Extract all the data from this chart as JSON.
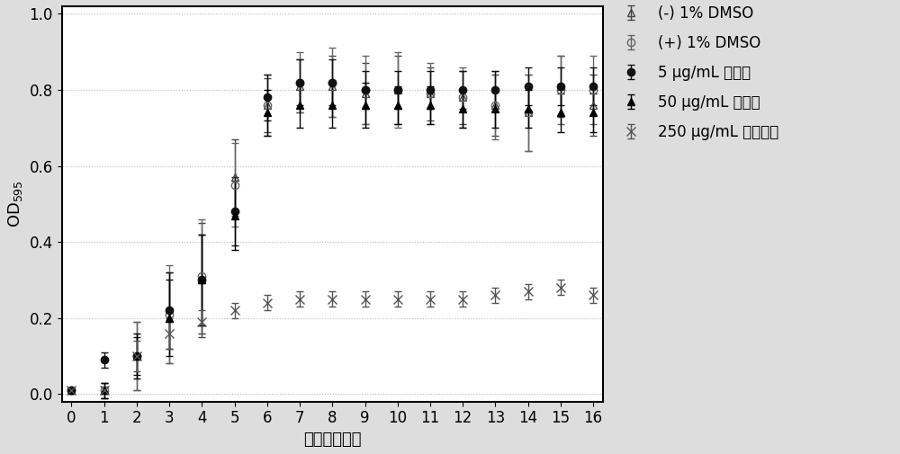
{
  "x": [
    0,
    1,
    2,
    3,
    4,
    5,
    6,
    7,
    8,
    9,
    10,
    11,
    12,
    13,
    14,
    15,
    16
  ],
  "series": {
    "neg_dmso": {
      "label": "(-) 1% DMSO",
      "y": [
        0.01,
        0.01,
        0.1,
        0.2,
        0.3,
        0.57,
        0.76,
        0.81,
        0.81,
        0.79,
        0.8,
        0.79,
        0.78,
        0.76,
        0.74,
        0.81,
        0.76
      ],
      "yerr": [
        0.005,
        0.02,
        0.09,
        0.12,
        0.15,
        0.1,
        0.07,
        0.07,
        0.08,
        0.08,
        0.09,
        0.07,
        0.07,
        0.08,
        0.1,
        0.08,
        0.08
      ],
      "marker": "^",
      "markersize": 6,
      "fillstyle": "none",
      "color": "#444444",
      "linestyle": "-"
    },
    "pos_dmso": {
      "label": "(+) 1% DMSO",
      "y": [
        0.01,
        0.01,
        0.1,
        0.21,
        0.31,
        0.55,
        0.76,
        0.82,
        0.82,
        0.8,
        0.8,
        0.79,
        0.78,
        0.76,
        0.74,
        0.8,
        0.8
      ],
      "yerr": [
        0.005,
        0.02,
        0.09,
        0.13,
        0.15,
        0.11,
        0.08,
        0.08,
        0.09,
        0.09,
        0.1,
        0.08,
        0.08,
        0.09,
        0.1,
        0.09,
        0.09
      ],
      "marker": "o",
      "markersize": 6,
      "fillstyle": "none",
      "color": "#666666",
      "linestyle": "-"
    },
    "inhib_5": {
      "label": "5 μg/mL 抑制剂",
      "y": [
        0.01,
        0.09,
        0.1,
        0.22,
        0.3,
        0.48,
        0.78,
        0.82,
        0.82,
        0.8,
        0.8,
        0.8,
        0.8,
        0.8,
        0.81,
        0.81,
        0.81
      ],
      "yerr": [
        0.005,
        0.02,
        0.05,
        0.1,
        0.12,
        0.09,
        0.06,
        0.06,
        0.06,
        0.05,
        0.05,
        0.05,
        0.05,
        0.05,
        0.05,
        0.05,
        0.05
      ],
      "marker": "o",
      "markersize": 6,
      "fillstyle": "full",
      "color": "#111111",
      "linestyle": "-"
    },
    "inhib_50": {
      "label": "50 μg/mL 抑制剂",
      "y": [
        0.01,
        0.01,
        0.1,
        0.2,
        0.3,
        0.47,
        0.74,
        0.76,
        0.76,
        0.76,
        0.76,
        0.76,
        0.75,
        0.75,
        0.75,
        0.74,
        0.74
      ],
      "yerr": [
        0.005,
        0.02,
        0.06,
        0.1,
        0.12,
        0.09,
        0.06,
        0.06,
        0.06,
        0.06,
        0.05,
        0.05,
        0.05,
        0.05,
        0.05,
        0.05,
        0.05
      ],
      "marker": "^",
      "markersize": 6,
      "fillstyle": "full",
      "color": "#000000",
      "linestyle": "-"
    },
    "amox_250": {
      "label": "250 μg/mL 氨苄西林",
      "y": [
        0.01,
        0.01,
        0.1,
        0.16,
        0.19,
        0.22,
        0.24,
        0.25,
        0.25,
        0.25,
        0.25,
        0.25,
        0.25,
        0.26,
        0.27,
        0.28,
        0.26
      ],
      "yerr": [
        0.005,
        0.01,
        0.04,
        0.04,
        0.03,
        0.02,
        0.02,
        0.02,
        0.02,
        0.02,
        0.02,
        0.02,
        0.02,
        0.02,
        0.02,
        0.02,
        0.02
      ],
      "marker": "x",
      "markersize": 7,
      "fillstyle": "full",
      "color": "#555555",
      "linestyle": "-"
    }
  },
  "xlabel": "时间（小时）",
  "ylabel": "OD$_{595}$",
  "xlim": [
    -0.3,
    16.3
  ],
  "ylim": [
    -0.02,
    1.02
  ],
  "yticks": [
    0.0,
    0.2,
    0.4,
    0.6,
    0.8,
    1.0
  ],
  "xticks": [
    0,
    1,
    2,
    3,
    4,
    5,
    6,
    7,
    8,
    9,
    10,
    11,
    12,
    13,
    14,
    15,
    16
  ],
  "background_color": "#dddddd",
  "plot_bg_color": "#ffffff",
  "legend_fontsize": 12,
  "axis_fontsize": 13,
  "tick_fontsize": 12
}
